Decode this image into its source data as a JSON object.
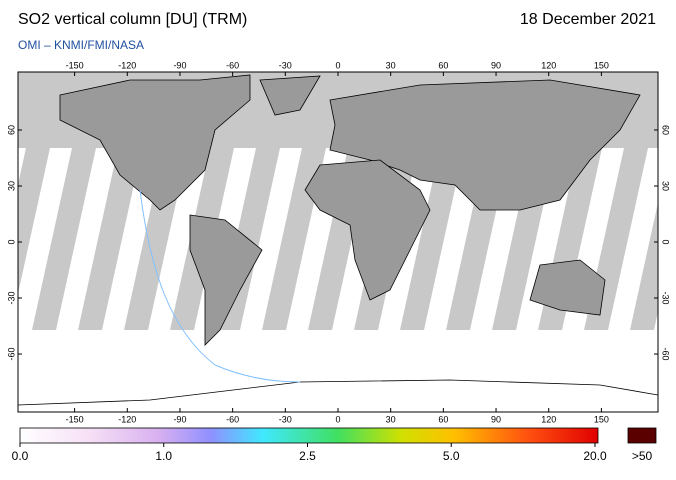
{
  "header": {
    "title": "SO2 vertical column [DU] (TRM)",
    "date": "18 December 2021",
    "subtitle": "OMI  –  KNMI/FMI/NASA"
  },
  "map": {
    "lon_ticks": [
      -150,
      -120,
      -90,
      -60,
      -30,
      0,
      30,
      60,
      90,
      120,
      150
    ],
    "lat_ticks": [
      60,
      30,
      0,
      -30,
      -60
    ]
  },
  "colorbar": {
    "ticks": [
      {
        "value": 0,
        "label": "0.0"
      },
      {
        "value": 1,
        "label": "1.0"
      },
      2.5,
      {
        "value": 5,
        "label": "5.0"
      },
      {
        "value": 20,
        "label": "20.0"
      }
    ],
    "overflow_label": ">50"
  }
}
